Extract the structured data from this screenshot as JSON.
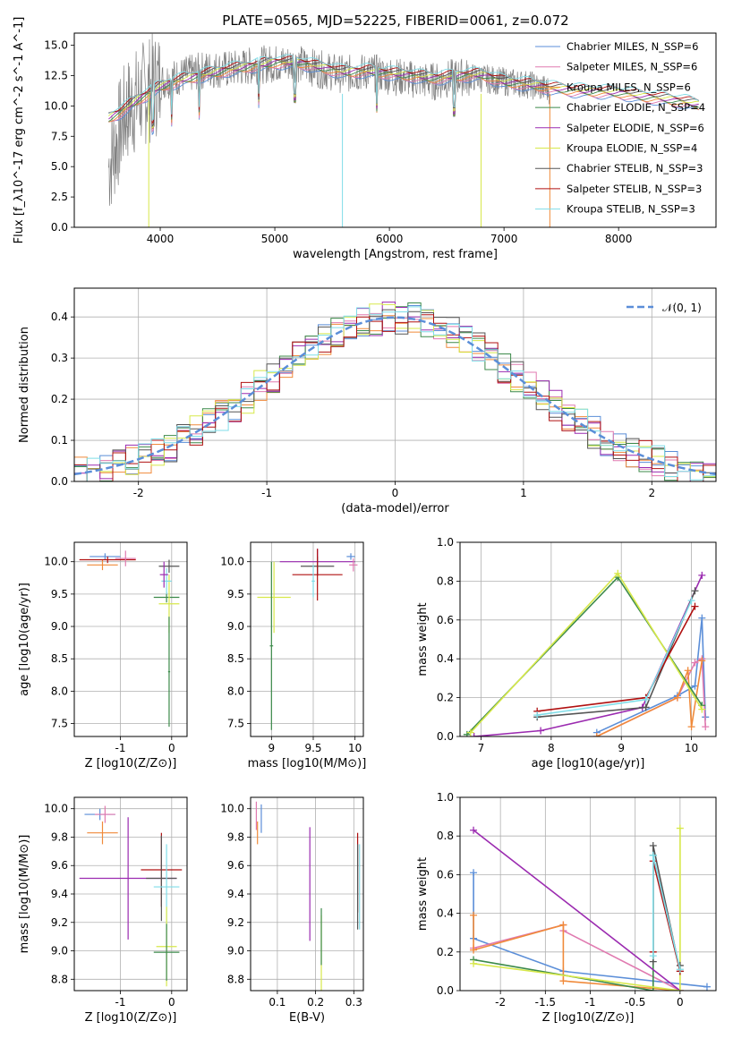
{
  "figure": {
    "title": "PLATE=0565, MJD=52225, FIBERID=0061, z=0.072"
  },
  "colors": {
    "Chabrier MILES": "#5b8ed8",
    "Salpeter MILES": "#e07ab0",
    "Kroupa MILES": "#f08a3a",
    "Chabrier ELODIE": "#3c8a4a",
    "Salpeter ELODIE": "#9b2bb0",
    "Kroupa ELODIE": "#d7e84a",
    "Chabrier STELIB": "#555555",
    "Salpeter STELIB": "#b01010",
    "Kroupa STELIB": "#7fdde8",
    "data_spectrum": "#808080",
    "gaussian": "#5b8ed8",
    "grid": "#b0b0b0"
  },
  "chart_data": [
    {
      "id": "spectrum",
      "type": "line",
      "xlabel": "wavelength [Angstrom, rest frame]",
      "ylabel": "Flux [f_λ10^-17 erg cm^-2 s^-1 A^-1]",
      "xlim": [
        3250,
        8850
      ],
      "ylim": [
        0,
        16
      ],
      "xticks": [
        4000,
        5000,
        6000,
        7000,
        8000
      ],
      "yticks": [
        0.0,
        2.5,
        5.0,
        7.5,
        10.0,
        12.5,
        15.0
      ],
      "grid": false,
      "legend_position": "top-right",
      "legend": [
        "Chabrier MILES, N_SSP=6",
        "Salpeter MILES, N_SSP=6",
        "Kroupa MILES, N_SSP=6",
        "Chabrier ELODIE, N_SSP=4",
        "Salpeter ELODIE, N_SSP=6",
        "Kroupa ELODIE, N_SSP=4",
        "Chabrier STELIB, N_SSP=3",
        "Salpeter STELIB, N_SSP=3",
        "Kroupa STELIB, N_SSP=3"
      ],
      "data_spectrum_envelope": {
        "x": [
          3550,
          3700,
          3850,
          4000,
          4200,
          4400,
          4600,
          4800,
          5000,
          5200,
          5400,
          5600,
          5800,
          6000,
          6200,
          6400,
          6600,
          6800,
          7000,
          7200,
          7400
        ],
        "y": [
          5.0,
          9.5,
          11.0,
          12.0,
          12.5,
          13.0,
          13.0,
          13.3,
          13.5,
          13.5,
          13.0,
          12.6,
          12.8,
          12.5,
          12.2,
          12.0,
          12.4,
          12.3,
          12.0,
          11.8,
          11.3
        ]
      },
      "model_continuum": {
        "x": [
          3550,
          3650,
          3800,
          4000,
          4200,
          4400,
          4600,
          4800,
          5000,
          5200,
          5400,
          5600,
          5800,
          6000,
          6200,
          6400,
          6600,
          6800,
          7000,
          7200,
          7400,
          7600,
          7800,
          8000,
          8200,
          8400,
          8600,
          8700
        ],
        "y": [
          9.0,
          9.5,
          10.5,
          11.6,
          12.2,
          12.6,
          13.0,
          13.3,
          13.6,
          13.6,
          13.2,
          12.8,
          12.9,
          12.7,
          12.5,
          12.3,
          12.5,
          12.6,
          12.0,
          11.8,
          11.5,
          11.3,
          11.2,
          11.1,
          10.8,
          10.6,
          10.3,
          10.1
        ]
      }
    },
    {
      "id": "residuals",
      "type": "line",
      "xlabel": "(data-model)/error",
      "ylabel": "Normed distribution",
      "xlim": [
        -2.5,
        2.5
      ],
      "ylim": [
        0,
        0.47
      ],
      "xticks": [
        -2,
        -1,
        0,
        1,
        2
      ],
      "yticks": [
        0.0,
        0.1,
        0.2,
        0.3,
        0.4
      ],
      "grid": true,
      "legend": [
        "𝒩(0, 1)"
      ],
      "legend_position": "top-right",
      "gaussian": {
        "mean": 0,
        "sigma": 1
      },
      "bin_width": 0.1
    },
    {
      "id": "age_vs_Z",
      "type": "scatter",
      "xlabel": "Z [log10(Z/Z⊙)]",
      "ylabel": "age  [log10(age/yr)]",
      "xlim": [
        -1.9,
        0.3
      ],
      "ylim": [
        7.3,
        10.3
      ],
      "xticks": [
        -1,
        0
      ],
      "yticks": [
        7.5,
        8.0,
        8.5,
        9.0,
        9.5,
        10.0
      ],
      "grid": true,
      "points": [
        {
          "model": "Chabrier MILES",
          "x": -1.3,
          "y": 10.08,
          "xerr": 0.3,
          "yerr": 0.05
        },
        {
          "model": "Kroupa MILES",
          "x": -1.35,
          "y": 9.95,
          "xerr": 0.3,
          "yerr": 0.08
        },
        {
          "model": "Salpeter STELIB",
          "x": -1.25,
          "y": 10.03,
          "xerr": 0.55,
          "yerr": 0.05
        },
        {
          "model": "Salpeter MILES",
          "x": -0.9,
          "y": 10.05,
          "xerr": 0.2,
          "yerr": 0.12
        },
        {
          "model": "Chabrier STELIB",
          "x": -0.05,
          "y": 9.93,
          "xerr": 0.2,
          "yerr": 0.1
        },
        {
          "model": "Chabrier ELODIE",
          "x": -0.1,
          "y": 9.45,
          "xerr": 0.25,
          "yerr": 0.08
        },
        {
          "model": "Kroupa ELODIE",
          "x": -0.05,
          "y": 9.35,
          "xerr": 0.2,
          "yerr": 0.45
        },
        {
          "model": "Kroupa STELIB",
          "x": -0.1,
          "y": 9.7,
          "xerr": 0.1,
          "yerr": 0.2
        },
        {
          "model": "Salpeter ELODIE",
          "x": -0.15,
          "y": 9.8,
          "xerr": 0.08,
          "yerr": 0.2
        },
        {
          "model": "Chabrier ELODIE",
          "x": -0.05,
          "y": 8.3,
          "xerr": 0.02,
          "yerr": 0.85
        }
      ]
    },
    {
      "id": "age_vs_mass",
      "type": "scatter",
      "xlabel": "mass [log10(M/M⊙)]",
      "ylabel": "",
      "xlim": [
        8.75,
        10.1
      ],
      "ylim": [
        7.3,
        10.3
      ],
      "xticks": [
        9.0,
        9.5,
        10.0
      ],
      "yticks": [
        7.5,
        8.0,
        8.5,
        9.0,
        9.5,
        10.0
      ],
      "grid": true,
      "points": [
        {
          "model": "Salpeter ELODIE",
          "x": 9.55,
          "y": 10.0,
          "xerr": 0.45,
          "yerr": 0.2
        },
        {
          "model": "Chabrier MILES",
          "x": 9.95,
          "y": 10.08,
          "xerr": 0.05,
          "yerr": 0.05
        },
        {
          "model": "Salpeter MILES",
          "x": 9.98,
          "y": 9.95,
          "xerr": 0.05,
          "yerr": 0.1
        },
        {
          "model": "Chabrier STELIB",
          "x": 9.55,
          "y": 9.93,
          "xerr": 0.2,
          "yerr": 0.15
        },
        {
          "model": "Salpeter STELIB",
          "x": 9.55,
          "y": 9.8,
          "xerr": 0.3,
          "yerr": 0.4
        },
        {
          "model": "Kroupa STELIB",
          "x": 9.5,
          "y": 9.7,
          "xerr": 0.02,
          "yerr": 0.25
        },
        {
          "model": "Kroupa ELODIE",
          "x": 9.03,
          "y": 9.45,
          "xerr": 0.2,
          "yerr": 0.55
        },
        {
          "model": "Chabrier ELODIE",
          "x": 9.0,
          "y": 8.7,
          "xerr": 0.02,
          "yerr": 1.3
        }
      ]
    },
    {
      "id": "weight_vs_age",
      "type": "line",
      "xlabel": "age  [log10(age/yr)]",
      "ylabel": "mass weight",
      "xlim": [
        6.7,
        10.35
      ],
      "ylim": [
        0,
        1.0
      ],
      "xticks": [
        7,
        8,
        9,
        10
      ],
      "yticks": [
        0.0,
        0.2,
        0.4,
        0.6,
        0.8,
        1.0
      ],
      "grid": true,
      "series": [
        {
          "name": "Chabrier MILES",
          "x": [
            8.65,
            9.8,
            10.05,
            10.15,
            10.2
          ],
          "y": [
            0.02,
            0.21,
            0.26,
            0.61,
            0.1
          ]
        },
        {
          "name": "Salpeter MILES",
          "x": [
            8.65,
            9.8,
            10.05,
            10.15,
            10.2
          ],
          "y": [
            0.0,
            0.2,
            0.38,
            0.4,
            0.05
          ]
        },
        {
          "name": "Kroupa MILES",
          "x": [
            8.65,
            9.8,
            9.95,
            10.0,
            10.15
          ],
          "y": [
            0.0,
            0.2,
            0.34,
            0.05,
            0.39
          ]
        },
        {
          "name": "Chabrier ELODIE",
          "x": [
            6.8,
            8.95,
            10.15
          ],
          "y": [
            0.01,
            0.82,
            0.16
          ]
        },
        {
          "name": "Salpeter ELODIE",
          "x": [
            6.9,
            7.85,
            9.3,
            10.15
          ],
          "y": [
            0.0,
            0.03,
            0.15,
            0.83
          ]
        },
        {
          "name": "Kroupa ELODIE",
          "x": [
            6.85,
            8.95,
            10.15
          ],
          "y": [
            0.02,
            0.84,
            0.14
          ]
        },
        {
          "name": "Chabrier STELIB",
          "x": [
            7.8,
            9.35,
            10.05
          ],
          "y": [
            0.1,
            0.15,
            0.75
          ]
        },
        {
          "name": "Salpeter STELIB",
          "x": [
            7.8,
            9.35,
            10.05
          ],
          "y": [
            0.13,
            0.2,
            0.67
          ]
        },
        {
          "name": "Kroupa STELIB",
          "x": [
            7.8,
            9.35,
            10.0
          ],
          "y": [
            0.11,
            0.19,
            0.7
          ]
        }
      ]
    },
    {
      "id": "mass_vs_Z",
      "type": "scatter",
      "xlabel": "Z [log10(Z/Z⊙)]",
      "ylabel": "mass [log10(M/M⊙)]",
      "xlim": [
        -1.9,
        0.3
      ],
      "ylim": [
        8.72,
        10.08
      ],
      "xticks": [
        -1,
        0
      ],
      "yticks": [
        8.8,
        9.0,
        9.2,
        9.4,
        9.6,
        9.8,
        10.0
      ],
      "grid": true,
      "points": [
        {
          "model": "Chabrier MILES",
          "x": -1.4,
          "y": 9.96,
          "xerr": 0.3,
          "yerr": 0.04
        },
        {
          "model": "Salpeter MILES",
          "x": -1.3,
          "y": 9.96,
          "xerr": 0.2,
          "yerr": 0.06
        },
        {
          "model": "Kroupa MILES",
          "x": -1.35,
          "y": 9.83,
          "xerr": 0.3,
          "yerr": 0.08
        },
        {
          "model": "Salpeter ELODIE",
          "x": -0.85,
          "y": 9.51,
          "xerr": 0.95,
          "yerr": 0.43
        },
        {
          "model": "Salpeter STELIB",
          "x": -0.2,
          "y": 9.57,
          "xerr": 0.4,
          "yerr": 0.26
        },
        {
          "model": "Chabrier STELIB",
          "x": -0.2,
          "y": 9.51,
          "xerr": 0.3,
          "yerr": 0.3
        },
        {
          "model": "Kroupa STELIB",
          "x": -0.1,
          "y": 9.45,
          "xerr": 0.25,
          "yerr": 0.3
        },
        {
          "model": "Kroupa ELODIE",
          "x": -0.1,
          "y": 9.03,
          "xerr": 0.2,
          "yerr": 0.28
        },
        {
          "model": "Chabrier ELODIE",
          "x": -0.1,
          "y": 8.99,
          "xerr": 0.25,
          "yerr": 0.2
        }
      ]
    },
    {
      "id": "mass_vs_ebv",
      "type": "scatter",
      "xlabel": "E(B-V)",
      "ylabel": "",
      "xlim": [
        0.03,
        0.325
      ],
      "ylim": [
        8.72,
        10.08
      ],
      "xticks": [
        0.1,
        0.2,
        0.3
      ],
      "yticks": [
        8.8,
        9.0,
        9.2,
        9.4,
        9.6,
        9.8,
        10.0
      ],
      "grid": true,
      "points": [
        {
          "model": "Salpeter MILES",
          "x": 0.045,
          "y": 9.95,
          "xerr": 0,
          "yerr": 0.1
        },
        {
          "model": "Kroupa MILES",
          "x": 0.048,
          "y": 9.83,
          "xerr": 0,
          "yerr": 0.08
        },
        {
          "model": "Chabrier MILES",
          "x": 0.058,
          "y": 9.93,
          "xerr": 0,
          "yerr": 0.1
        },
        {
          "model": "Salpeter ELODIE",
          "x": 0.185,
          "y": 9.47,
          "xerr": 0,
          "yerr": 0.4
        },
        {
          "model": "Kroupa ELODIE",
          "x": 0.215,
          "y": 8.98,
          "xerr": 0,
          "yerr": 0.27
        },
        {
          "model": "Chabrier ELODIE",
          "x": 0.215,
          "y": 9.1,
          "xerr": 0,
          "yerr": 0.2
        },
        {
          "model": "Salpeter STELIB",
          "x": 0.31,
          "y": 9.55,
          "xerr": 0,
          "yerr": 0.28
        },
        {
          "model": "Chabrier STELIB",
          "x": 0.31,
          "y": 9.45,
          "xerr": 0,
          "yerr": 0.3
        },
        {
          "model": "Kroupa STELIB",
          "x": 0.315,
          "y": 9.45,
          "xerr": 0,
          "yerr": 0.3
        }
      ]
    },
    {
      "id": "weight_vs_Z",
      "type": "line",
      "xlabel": "Z [log10(Z/Z⊙)]",
      "ylabel": "mass weight",
      "xlim": [
        -2.45,
        0.4
      ],
      "ylim": [
        0,
        1.0
      ],
      "xticks": [
        -2.0,
        -1.5,
        -1.0,
        -0.5,
        0.0
      ],
      "yticks": [
        0.0,
        0.2,
        0.4,
        0.6,
        0.8,
        1.0
      ],
      "grid": true,
      "series": [
        {
          "name": "Chabrier MILES",
          "x": [
            -2.3,
            -2.3,
            -1.3,
            0.3
          ],
          "y": [
            0.61,
            0.27,
            0.1,
            0.02
          ]
        },
        {
          "name": "Salpeter MILES",
          "x": [
            -2.3,
            -1.3,
            -1.3,
            0.0
          ],
          "y": [
            0.22,
            0.34,
            0.31,
            0.0
          ]
        },
        {
          "name": "Kroupa MILES",
          "x": [
            -2.3,
            -2.3,
            -1.3,
            -1.3,
            0.0
          ],
          "y": [
            0.39,
            0.21,
            0.34,
            0.05,
            0.0
          ]
        },
        {
          "name": "Chabrier ELODIE",
          "x": [
            -2.3,
            -0.3,
            -0.3
          ],
          "y": [
            0.16,
            0.0,
            0.7
          ]
        },
        {
          "name": "Salpeter ELODIE",
          "x": [
            -2.3,
            0.0
          ],
          "y": [
            0.83,
            0.0
          ]
        },
        {
          "name": "Kroupa ELODIE",
          "x": [
            -2.3,
            0.0,
            0.0
          ],
          "y": [
            0.14,
            0.0,
            0.84
          ]
        },
        {
          "name": "Chabrier STELIB",
          "x": [
            -0.3,
            -0.3,
            0.0,
            0.0
          ],
          "y": [
            0.15,
            0.75,
            0.1,
            0.13
          ]
        },
        {
          "name": "Salpeter STELIB",
          "x": [
            -0.3,
            -0.3,
            0.0
          ],
          "y": [
            0.2,
            0.67,
            0.1
          ]
        },
        {
          "name": "Kroupa STELIB",
          "x": [
            -0.3,
            -0.3,
            0.0
          ],
          "y": [
            0.18,
            0.7,
            0.11
          ]
        }
      ]
    }
  ]
}
